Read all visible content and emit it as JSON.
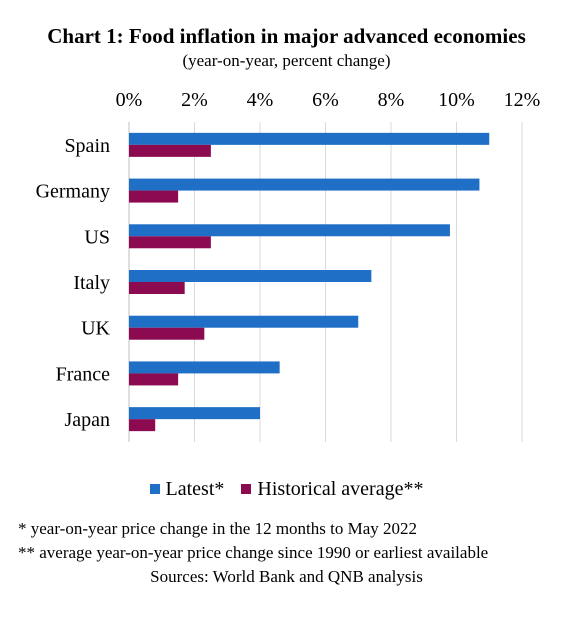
{
  "chart_data": {
    "type": "bar",
    "orientation": "horizontal",
    "title": "Chart 1: Food inflation in major advanced economies",
    "subtitle": "(year-on-year, percent change)",
    "categories": [
      "Spain",
      "Germany",
      "US",
      "Italy",
      "UK",
      "France",
      "Japan"
    ],
    "series": [
      {
        "name": "Latest*",
        "color": "#1f6fc6",
        "values": [
          11.0,
          10.7,
          9.8,
          7.4,
          7.0,
          4.6,
          4.0
        ]
      },
      {
        "name": "Historical average**",
        "color": "#8b0a50",
        "values": [
          2.5,
          1.5,
          2.5,
          1.7,
          2.3,
          1.5,
          0.8
        ]
      }
    ],
    "xlim": [
      0,
      12
    ],
    "x_ticks": [
      0,
      2,
      4,
      6,
      8,
      10,
      12
    ],
    "tick_labels": [
      "0%",
      "2%",
      "4%",
      "6%",
      "8%",
      "10%",
      "12%"
    ],
    "x_axis_position": "top",
    "grid": true,
    "legend_position": "bottom"
  },
  "notes": [
    "* year-on-year price change in the 12 months to May 2022",
    "** average year-on-year price change since 1990 or earliest available"
  ],
  "source": "Sources: World Bank and QNB analysis"
}
